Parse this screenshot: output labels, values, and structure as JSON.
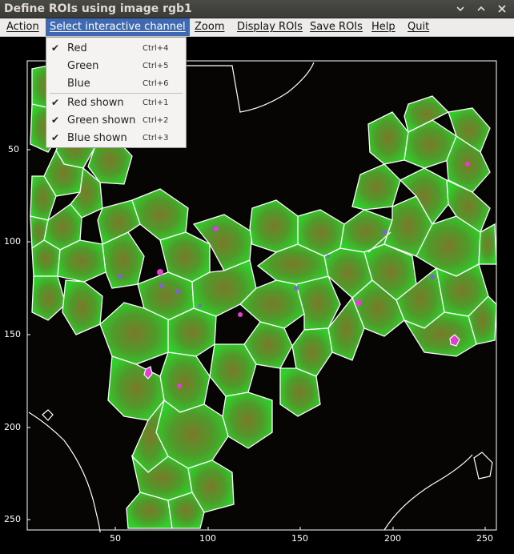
{
  "window": {
    "title": "Define ROIs using image rgb1"
  },
  "menubar": {
    "items": [
      "Action",
      "Select interactive channel",
      "Zoom",
      "Display ROIs",
      "Save ROIs",
      "Help",
      "Quit"
    ]
  },
  "channel_menu": {
    "items": [
      {
        "label": "Red",
        "checked": true,
        "shortcut": "Ctrl+4"
      },
      {
        "label": "Green",
        "checked": false,
        "shortcut": "Ctrl+5"
      },
      {
        "label": "Blue",
        "checked": false,
        "shortcut": "Ctrl+6"
      },
      {
        "label": "Red shown",
        "checked": true,
        "shortcut": "Ctrl+1"
      },
      {
        "label": "Green shown",
        "checked": true,
        "shortcut": "Ctrl+2"
      },
      {
        "label": "Blue shown",
        "checked": true,
        "shortcut": "Ctrl+3"
      }
    ]
  },
  "plot": {
    "x_ticks": [
      "50",
      "100",
      "150",
      "200",
      "250"
    ],
    "y_ticks": [
      "50",
      "100",
      "150",
      "200",
      "250"
    ]
  },
  "colors": {
    "cell_green": "#3fb82a",
    "roi_outline": "#ffffff",
    "menu_highlight": "#3f6ab3"
  },
  "icons": [
    "minimize-icon",
    "maximize-icon",
    "close-icon",
    "checkmark-icon"
  ]
}
